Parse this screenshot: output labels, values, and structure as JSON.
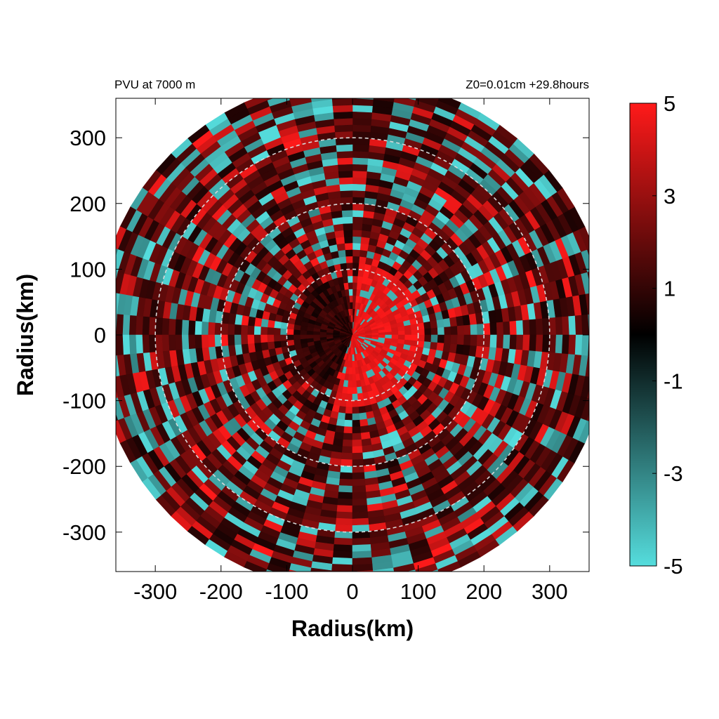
{
  "chart_data": {
    "type": "heatmap",
    "projection": "polar",
    "title_left": "PVU at  7000 m",
    "title_right": "Z0=0.01cm  +29.8hours",
    "xlabel": "Radius(km)",
    "ylabel": "Radius(km)",
    "xlim": [
      -360,
      360
    ],
    "ylim": [
      -360,
      360
    ],
    "x_ticks": [
      -300,
      -200,
      -100,
      0,
      100,
      200,
      300
    ],
    "y_ticks": [
      300,
      200,
      100,
      0,
      -100,
      -200,
      -300
    ],
    "reference_circles_km": [
      100,
      200,
      300
    ],
    "data_radius_km": 390,
    "colorbar": {
      "range": [
        -5,
        5
      ],
      "ticks": [
        5,
        3,
        1,
        -1,
        -3,
        -5
      ],
      "colors": {
        "negative": "#55dddd",
        "zero": "#000000",
        "positive": "#ff1a1a"
      }
    },
    "field_description": {
      "core_positive_region": {
        "r_max_km": 110,
        "azimuth_center_deg": -10,
        "value": 5
      },
      "dark_core_sector": {
        "azimuth_range_deg": [
          100,
          250
        ],
        "r_max_km": 90,
        "value": 0.5
      }
    }
  }
}
